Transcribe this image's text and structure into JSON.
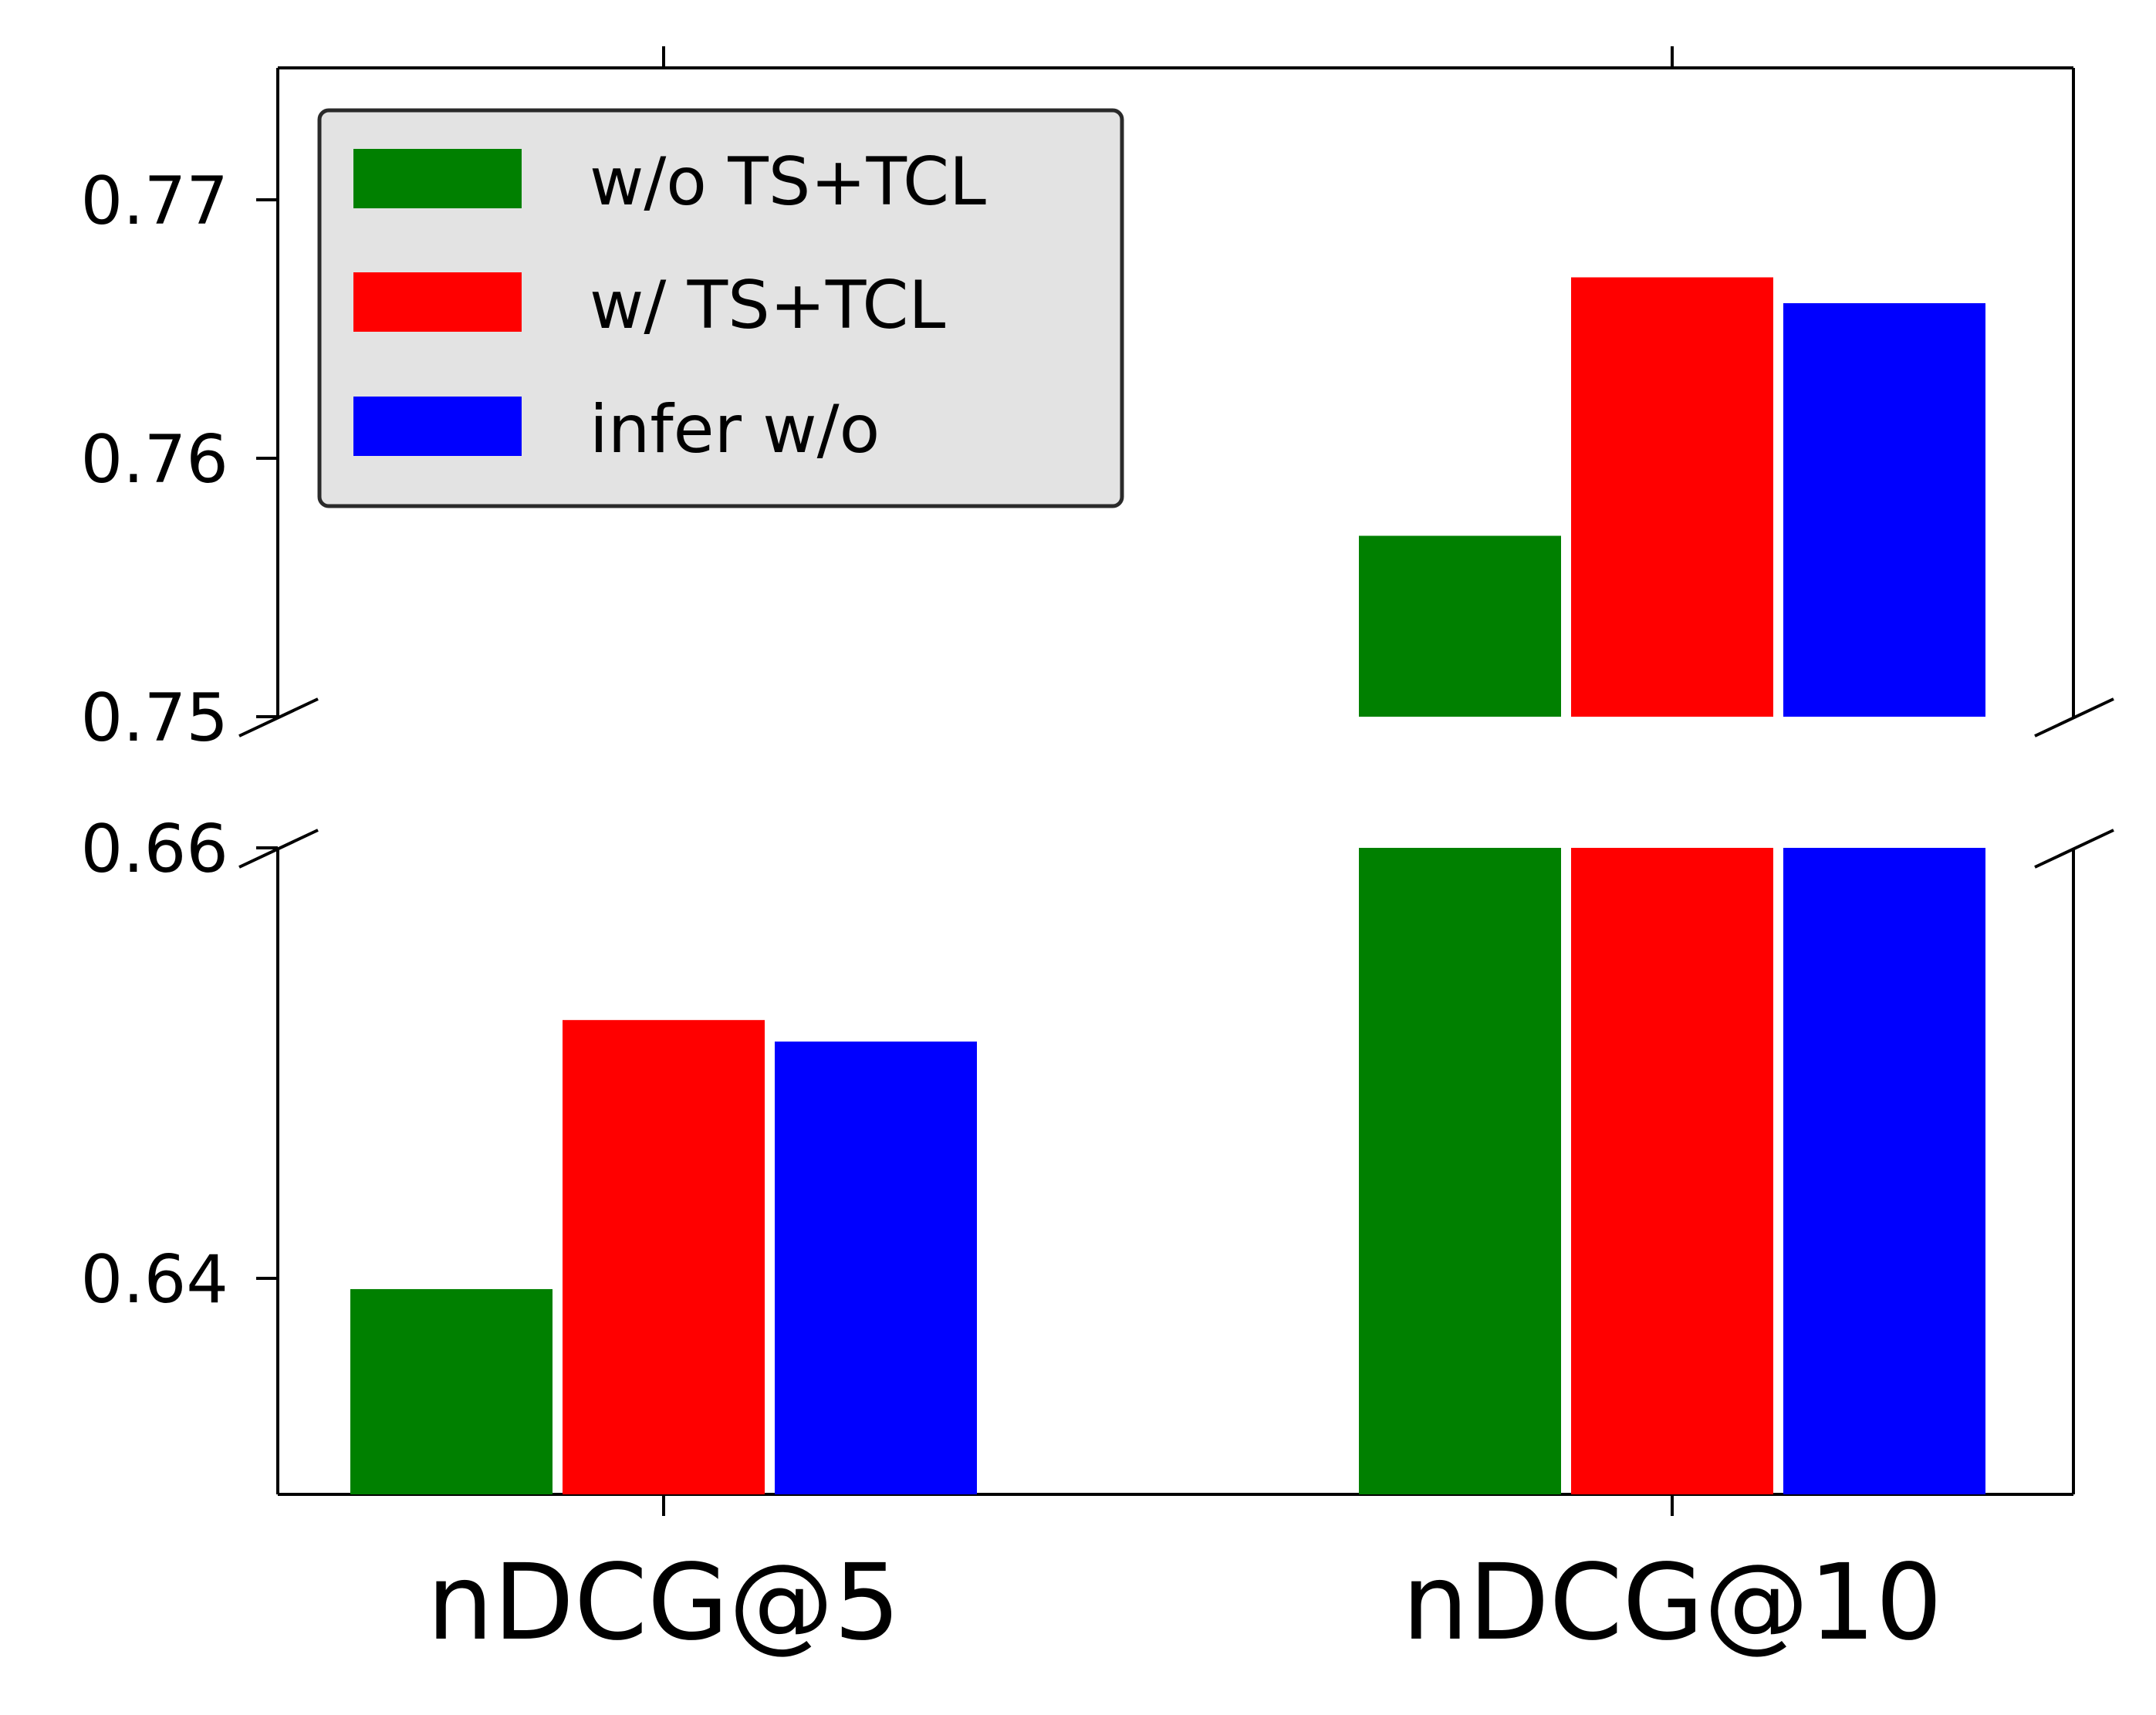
{
  "chart_data": {
    "type": "bar",
    "broken_y_axis": true,
    "categories": [
      "nDCG@5",
      "nDCG@10"
    ],
    "series": [
      {
        "name": "w/o TS+TCL",
        "color": "#008000",
        "values": [
          0.6395,
          0.757
        ]
      },
      {
        "name": "w/ TS+TCL",
        "color": "#ff0000",
        "values": [
          0.652,
          0.767
        ]
      },
      {
        "name": "infer w/o",
        "color": "#0000ff",
        "values": [
          0.651,
          0.766
        ]
      }
    ],
    "upper_panel": {
      "ylim": [
        0.75,
        0.7751
      ],
      "ticks": [
        "0.77",
        "0.76",
        "0.75"
      ]
    },
    "lower_panel": {
      "ylim": [
        0.63,
        0.66
      ],
      "ticks": [
        "0.66",
        "0.64"
      ]
    },
    "title": "",
    "xlabel": "",
    "ylabel": "",
    "legend": {
      "position": "top-left",
      "background": "#e3e3e3"
    }
  }
}
